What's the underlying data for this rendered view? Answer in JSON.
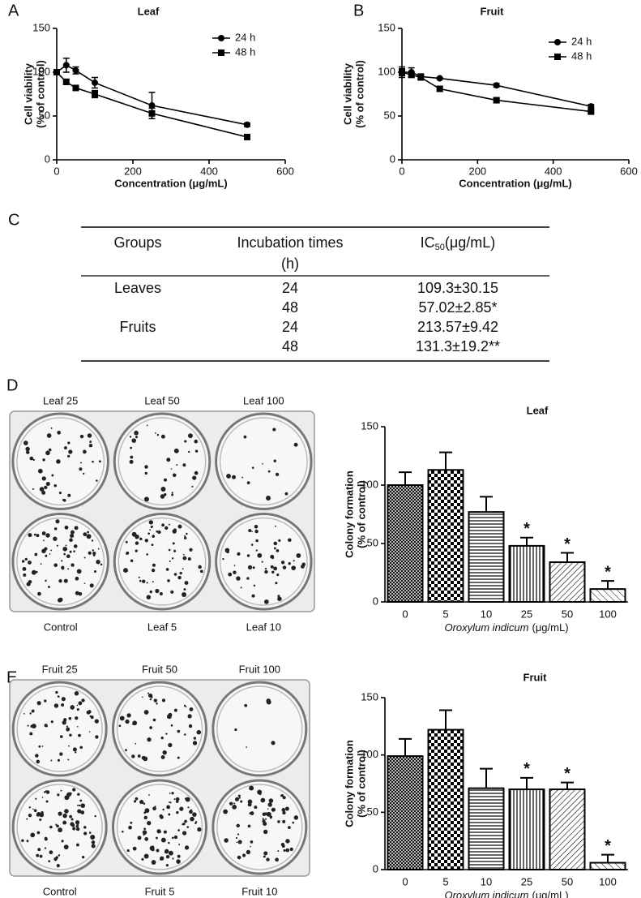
{
  "panel_labels": [
    "A",
    "B",
    "C",
    "D",
    "E"
  ],
  "chart_data": [
    {
      "type": "line",
      "title": "Leaf",
      "xlabel": "Concentration (μg/mL)",
      "ylabel": [
        "Cell viability",
        "(% of control)"
      ],
      "xlim": [
        0,
        600
      ],
      "xticks": [
        0,
        200,
        400,
        600
      ],
      "ylim": [
        0,
        150
      ],
      "yticks": [
        0,
        50,
        100,
        150
      ],
      "x": [
        0,
        25,
        50,
        100,
        250,
        500
      ],
      "series": [
        {
          "name": "24 h",
          "color": "#000000",
          "marker": "circle",
          "values": [
            100,
            108,
            102,
            88,
            62,
            40
          ],
          "errors": [
            3,
            8,
            4,
            6,
            15,
            2
          ]
        },
        {
          "name": "48 h",
          "color": "#000000",
          "marker": "square",
          "values": [
            100,
            89,
            82,
            75,
            53,
            26
          ],
          "errors": [
            3,
            3,
            2,
            4,
            6,
            1
          ]
        }
      ]
    },
    {
      "type": "line",
      "title": "Fruit",
      "xlabel": "Concentration (μg/mL)",
      "ylabel": [
        "Cell viability",
        "(% of control)"
      ],
      "xlim": [
        0,
        600
      ],
      "xticks": [
        0,
        200,
        400,
        600
      ],
      "ylim": [
        0,
        150
      ],
      "yticks": [
        0,
        50,
        100,
        150
      ],
      "x": [
        0,
        25,
        50,
        100,
        250,
        500
      ],
      "series": [
        {
          "name": "24 h",
          "color": "#000000",
          "marker": "circle",
          "values": [
            100,
            100,
            95,
            93,
            85,
            61
          ],
          "errors": [
            6,
            5,
            3,
            1,
            2,
            2
          ]
        },
        {
          "name": "48 h",
          "color": "#000000",
          "marker": "square",
          "values": [
            100,
            97,
            94,
            81,
            68,
            55
          ],
          "errors": [
            4,
            3,
            2,
            3,
            3,
            2
          ]
        }
      ]
    },
    {
      "type": "bar",
      "title": "Leaf",
      "xlabel": [
        "Oroxylum indicum",
        "(μg/mL)"
      ],
      "ylabel": [
        "Colony formation",
        "(% of control)"
      ],
      "categories": [
        "0",
        "5",
        "10",
        "25",
        "50",
        "100"
      ],
      "values": [
        100,
        113,
        77,
        48,
        34,
        11
      ],
      "errors": [
        11,
        15,
        13,
        7,
        8,
        7
      ],
      "annotations": [
        null,
        null,
        null,
        "*",
        "*",
        "*"
      ],
      "ylim": [
        0,
        150
      ],
      "yticks": [
        0,
        50,
        100,
        150
      ],
      "color": "#000000"
    },
    {
      "type": "bar",
      "title": "Fruit",
      "xlabel": [
        "Oroxylum indicum",
        "(μg/mL)"
      ],
      "ylabel": [
        "Colony formation",
        "(% of control)"
      ],
      "categories": [
        "0",
        "5",
        "10",
        "25",
        "50",
        "100"
      ],
      "values": [
        99,
        122,
        71,
        70,
        70,
        6
      ],
      "errors": [
        15,
        17,
        17,
        10,
        6,
        7
      ],
      "annotations": [
        null,
        null,
        null,
        "*",
        "*",
        "*"
      ],
      "ylim": [
        0,
        150
      ],
      "yticks": [
        0,
        50,
        100,
        150
      ],
      "color": "#000000"
    }
  ],
  "table": {
    "header": [
      "Groups",
      [
        "Incubation times",
        "(h)"
      ],
      [
        "IC",
        "50",
        "(μg/mL)"
      ]
    ],
    "rows": [
      [
        "Leaves",
        "24",
        "109.3±30.15"
      ],
      [
        null,
        "48",
        "57.02±2.85*"
      ],
      [
        "Fruits",
        "24",
        "213.57±9.42"
      ],
      [
        null,
        "48",
        "131.3±19.2**"
      ]
    ]
  },
  "photos": [
    {
      "top": [
        "Leaf 25",
        "Leaf 50",
        "Leaf 100"
      ],
      "bottom": [
        "Control",
        "Leaf 5",
        "Leaf 10"
      ]
    },
    {
      "top": [
        "Fruit 25",
        "Fruit 50",
        "Fruit 100"
      ],
      "bottom": [
        "Control",
        "Fruit 5",
        "Fruit 10"
      ]
    }
  ]
}
